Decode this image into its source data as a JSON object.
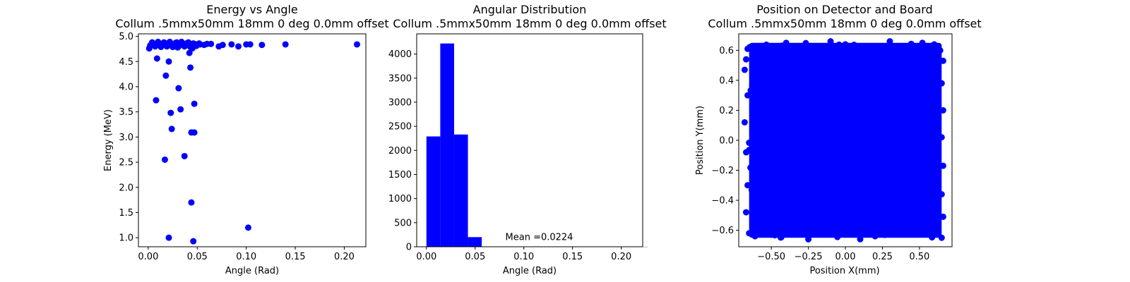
{
  "chart_data": [
    {
      "type": "scatter",
      "title": "Energy vs Angle",
      "subtitle": "Collum .5mmx50mm 18mm 0 deg 0.0mm offset",
      "xlabel": "Angle (Rad)",
      "ylabel": "Energy (MeV)",
      "xlim": [
        -0.01,
        0.222
      ],
      "ylim": [
        0.82,
        5.05
      ],
      "xticks": [
        "0.00",
        "0.05",
        "0.10",
        "0.15",
        "0.20"
      ],
      "yticks": [
        "1.0",
        "1.5",
        "2.0",
        "2.5",
        "3.0",
        "3.5",
        "4.0",
        "4.5",
        "5.0"
      ],
      "color": "#0000ff",
      "points": [
        [
          0.213,
          4.84
        ],
        [
          0.14,
          4.84
        ],
        [
          0.116,
          4.83
        ],
        [
          0.104,
          4.84
        ],
        [
          0.1,
          4.84
        ],
        [
          0.092,
          4.8
        ],
        [
          0.085,
          4.84
        ],
        [
          0.076,
          4.83
        ],
        [
          0.072,
          4.8
        ],
        [
          0.064,
          4.85
        ],
        [
          0.06,
          4.85
        ],
        [
          0.057,
          4.83
        ],
        [
          0.053,
          4.84
        ],
        [
          0.05,
          4.83
        ],
        [
          0.047,
          4.85
        ],
        [
          0.044,
          4.82
        ],
        [
          0.041,
          4.88
        ],
        [
          0.038,
          4.84
        ],
        [
          0.035,
          4.86
        ],
        [
          0.032,
          4.83
        ],
        [
          0.029,
          4.88
        ],
        [
          0.026,
          4.84
        ],
        [
          0.023,
          4.86
        ],
        [
          0.02,
          4.82
        ],
        [
          0.017,
          4.87
        ],
        [
          0.014,
          4.84
        ],
        [
          0.011,
          4.86
        ],
        [
          0.008,
          4.83
        ],
        [
          0.005,
          4.85
        ],
        [
          0.002,
          4.82
        ],
        [
          0.001,
          4.76
        ],
        [
          0.004,
          4.88
        ],
        [
          0.007,
          4.8
        ],
        [
          0.01,
          4.89
        ],
        [
          0.013,
          4.79
        ],
        [
          0.016,
          4.88
        ],
        [
          0.019,
          4.8
        ],
        [
          0.022,
          4.89
        ],
        [
          0.025,
          4.79
        ],
        [
          0.028,
          4.87
        ],
        [
          0.031,
          4.8
        ],
        [
          0.034,
          4.89
        ],
        [
          0.037,
          4.8
        ],
        [
          0.04,
          4.87
        ],
        [
          0.043,
          4.79
        ],
        [
          0.046,
          4.86
        ],
        [
          0.049,
          4.81
        ],
        [
          0.052,
          4.86
        ],
        [
          0.03,
          4.78
        ],
        [
          0.045,
          4.76
        ],
        [
          0.042,
          4.67
        ],
        [
          0.009,
          4.56
        ],
        [
          0.021,
          4.5
        ],
        [
          0.043,
          4.38
        ],
        [
          0.018,
          4.22
        ],
        [
          0.031,
          3.97
        ],
        [
          0.008,
          3.73
        ],
        [
          0.047,
          3.66
        ],
        [
          0.033,
          3.55
        ],
        [
          0.023,
          3.48
        ],
        [
          0.024,
          3.16
        ],
        [
          0.044,
          3.09
        ],
        [
          0.047,
          3.09
        ],
        [
          0.037,
          2.62
        ],
        [
          0.017,
          2.55
        ],
        [
          0.044,
          1.7
        ],
        [
          0.102,
          1.2
        ],
        [
          0.021,
          1.0
        ],
        [
          0.046,
          0.93
        ]
      ]
    },
    {
      "type": "bar",
      "title": "Angular Distribution",
      "subtitle": "Collum .5mmx50mm 18mm 0 deg 0.0mm offset",
      "xlabel": "Angle (Rad)",
      "ylabel": "",
      "xlim": [
        -0.01,
        0.222
      ],
      "ylim": [
        0,
        4420
      ],
      "xticks": [
        "0.00",
        "0.05",
        "0.10",
        "0.15",
        "0.20"
      ],
      "yticks": [
        "0",
        "500",
        "1000",
        "1500",
        "2000",
        "2500",
        "3000",
        "3500",
        "4000"
      ],
      "color": "#0000ff",
      "bins": [
        {
          "x0": 0.0,
          "x1": 0.0142,
          "count": 2290
        },
        {
          "x0": 0.0142,
          "x1": 0.0284,
          "count": 4220
        },
        {
          "x0": 0.0284,
          "x1": 0.0426,
          "count": 2330
        },
        {
          "x0": 0.0426,
          "x1": 0.0568,
          "count": 200
        },
        {
          "x0": 0.0568,
          "x1": 0.071,
          "count": 4
        },
        {
          "x0": 0.071,
          "x1": 0.0852,
          "count": 3
        },
        {
          "x0": 0.0852,
          "x1": 0.0994,
          "count": 2
        },
        {
          "x0": 0.0994,
          "x1": 0.1136,
          "count": 4
        },
        {
          "x0": 0.1136,
          "x1": 0.1278,
          "count": 1
        },
        {
          "x0": 0.1278,
          "x1": 0.142,
          "count": 1
        },
        {
          "x0": 0.213,
          "x1": 0.2272,
          "count": 1
        }
      ],
      "annotation": "Mean =0.0224",
      "annotation_pos": [
        0.081,
        80
      ]
    },
    {
      "type": "scatter",
      "title": "Position on Detector and Board",
      "subtitle": "Collum .5mmx50mm 18mm 0 deg 0.0mm offset",
      "xlabel": "Position X(mm)",
      "ylabel": "Position Y(mm)",
      "xlim": [
        -0.72,
        0.72
      ],
      "ylim": [
        -0.71,
        0.71
      ],
      "xticks": [
        "−0.50",
        "−0.25",
        "0.00",
        "0.25",
        "0.50"
      ],
      "yticks": [
        "−0.6",
        "−0.4",
        "−0.2",
        "0.0",
        "0.2",
        "0.4",
        "0.6"
      ],
      "color": "#0000ff",
      "region": {
        "x": [
          -0.65,
          0.65
        ],
        "y": [
          -0.65,
          0.65
        ]
      },
      "points": [
        [
          -0.66,
          0.61
        ],
        [
          -0.63,
          0.62
        ],
        [
          0.52,
          0.65
        ],
        [
          0.6,
          0.64
        ],
        [
          0.64,
          0.6
        ],
        [
          -0.67,
          0.54
        ],
        [
          -0.68,
          0.47
        ],
        [
          -0.66,
          0.3
        ],
        [
          -0.68,
          0.12
        ],
        [
          -0.67,
          -0.08
        ],
        [
          -0.66,
          -0.3
        ],
        [
          -0.67,
          -0.48
        ],
        [
          -0.65,
          -0.62
        ],
        [
          -0.61,
          -0.64
        ],
        [
          -0.5,
          -0.63
        ],
        [
          0.66,
          0.53
        ],
        [
          0.65,
          0.38
        ],
        [
          0.66,
          0.2
        ],
        [
          0.65,
          0.02
        ],
        [
          0.66,
          -0.17
        ],
        [
          0.65,
          -0.36
        ],
        [
          0.66,
          -0.51
        ],
        [
          0.65,
          -0.65
        ],
        [
          0.58,
          -0.63
        ],
        [
          0.1,
          -0.66
        ],
        [
          -0.25,
          -0.66
        ],
        [
          -0.1,
          0.66
        ],
        [
          0.3,
          0.66
        ],
        [
          -0.4,
          0.65
        ],
        [
          0.0,
          0.64
        ]
      ]
    }
  ]
}
